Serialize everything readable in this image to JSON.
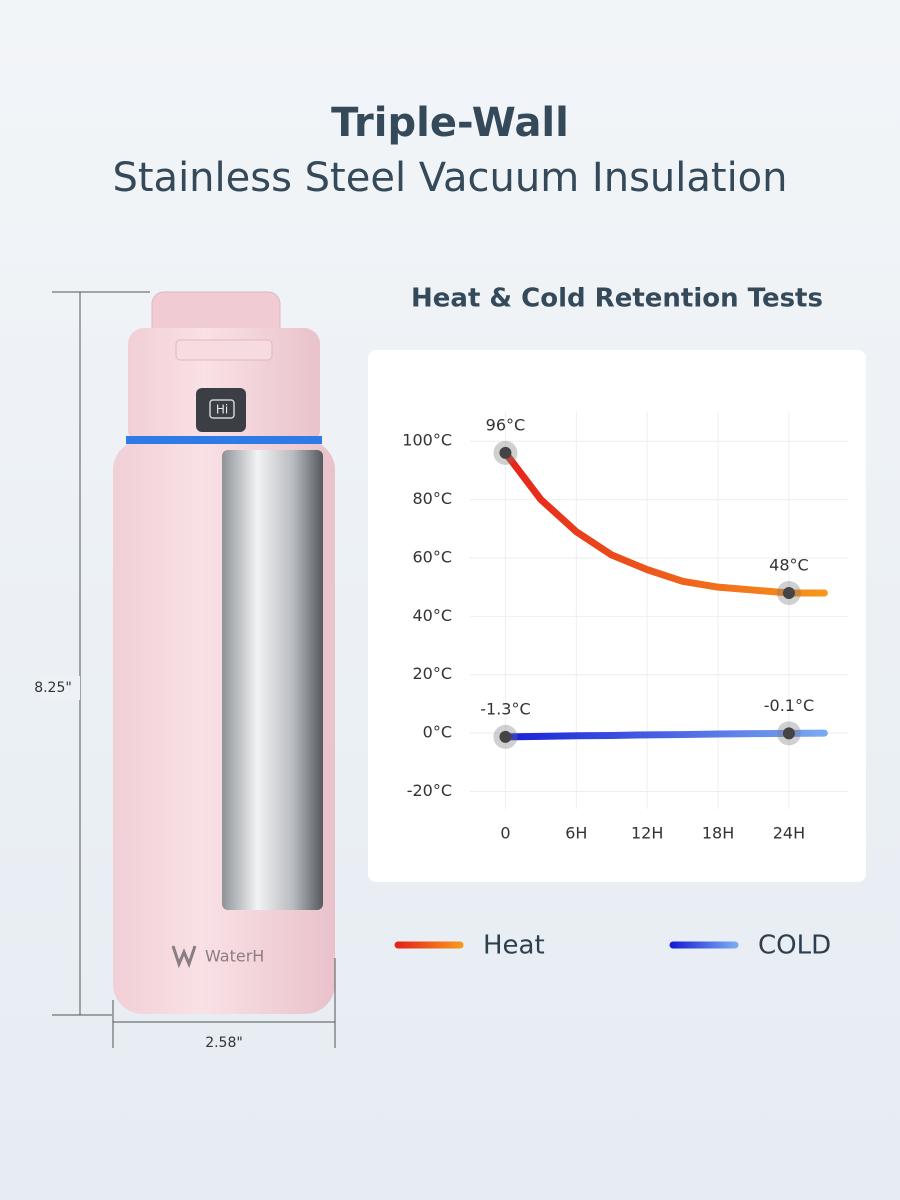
{
  "title": "Triple-Wall",
  "subtitle": "Stainless Steel Vacuum Insulation",
  "product": {
    "display": "Hi",
    "brand": "WaterH",
    "height": "8.25\"",
    "width": "2.58\""
  },
  "chart_data": {
    "type": "line",
    "title": "Heat & Cold Retention Tests",
    "x": [
      0,
      3,
      6,
      9,
      12,
      15,
      18,
      21,
      24,
      27
    ],
    "series": [
      {
        "name": "Heat",
        "colors": [
          "#e5231b",
          "#f7961c"
        ],
        "values": [
          96,
          80,
          69,
          61,
          56,
          52,
          50,
          49,
          48,
          48
        ],
        "value_labels": [
          "96°C",
          null,
          null,
          null,
          null,
          null,
          null,
          null,
          "48°C",
          null
        ]
      },
      {
        "name": "COLD",
        "colors": [
          "#1a1fd6",
          "#7aa9f0"
        ],
        "values": [
          -1.3,
          -1.1,
          -0.9,
          -0.8,
          -0.6,
          -0.5,
          -0.3,
          -0.2,
          -0.1,
          0
        ],
        "value_labels": [
          "-1.3°C",
          null,
          null,
          null,
          null,
          null,
          null,
          null,
          "-0.1°C",
          null
        ]
      }
    ],
    "xlim": [
      -3,
      29
    ],
    "xticks": [
      0,
      {
        "value": 6,
        "label": "6H"
      },
      {
        "value": 12,
        "label": "12H"
      },
      {
        "value": 18,
        "label": "18H"
      },
      {
        "value": 24,
        "label": "24H"
      }
    ],
    "ylim": [
      -26,
      110
    ],
    "yticks": [
      {
        "value": 100,
        "label": "100°C"
      },
      {
        "value": 80,
        "label": "80°C"
      },
      {
        "value": 60,
        "label": "60°C"
      },
      {
        "value": 40,
        "label": "40°C"
      },
      {
        "value": 20,
        "label": "20°C"
      },
      {
        "value": 0,
        "label": "0°C"
      },
      {
        "value": -20,
        "label": "-20°C"
      }
    ],
    "grid": true
  }
}
